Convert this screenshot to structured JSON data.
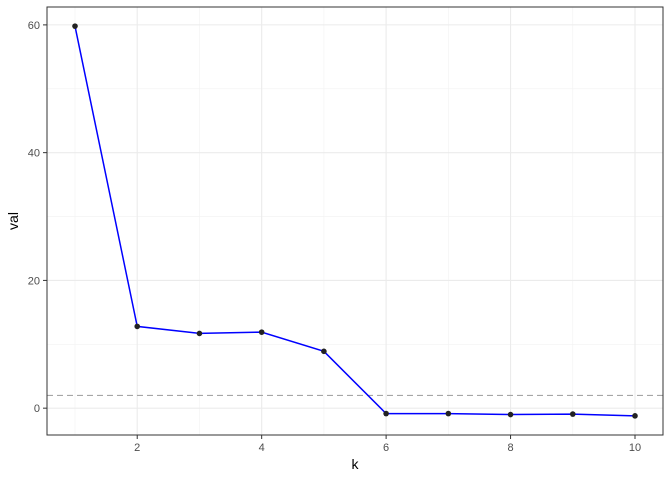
{
  "chart_data": {
    "type": "line",
    "title": "",
    "xlabel": "k",
    "ylabel": "val",
    "x": [
      1,
      2,
      3,
      4,
      5,
      6,
      7,
      8,
      9,
      10
    ],
    "series": [
      {
        "values": [
          59.8,
          12.8,
          11.7,
          11.9,
          8.9,
          -0.85,
          -0.85,
          -1.0,
          -0.93,
          -1.2
        ],
        "color": "#0000ff"
      }
    ],
    "hline": {
      "y": 2,
      "style": "dashed",
      "color": "#a6a6a6"
    },
    "xlim": [
      0.55,
      10.45
    ],
    "ylim": [
      -4.2,
      62.8
    ],
    "xticks": [
      2,
      4,
      6,
      8,
      10
    ],
    "yticks": [
      0,
      20,
      40,
      60
    ],
    "grid": true,
    "point_color": "#222222"
  }
}
